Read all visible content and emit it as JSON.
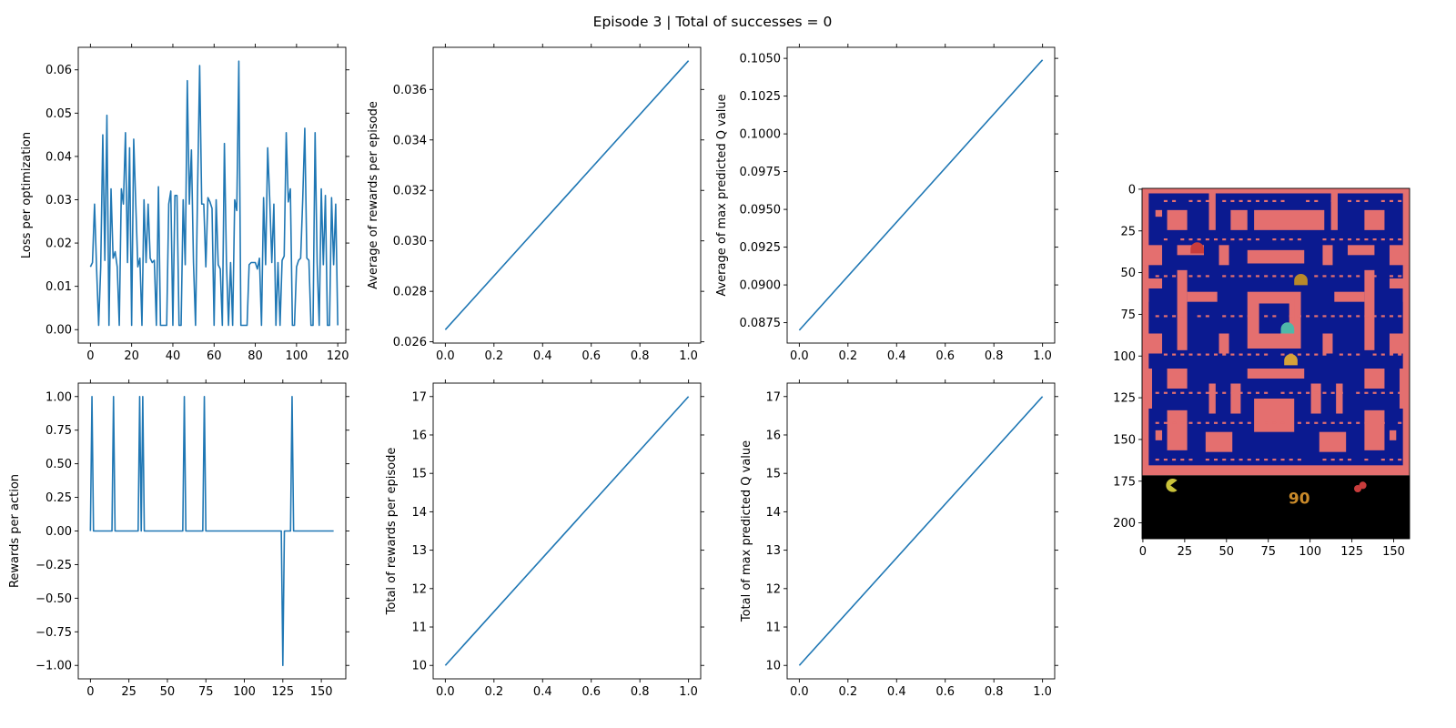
{
  "figure": {
    "suptitle": "Episode 3 | Total of successes = 0"
  },
  "colors": {
    "line": "#1f77b4",
    "maze_wall": "#e46f6f",
    "maze_floor": "#0b1a90",
    "pellet": "#e46f6f",
    "hud": "#000000",
    "pacman": "#c9c23a",
    "score": "#c98a2a"
  },
  "chart_data": [
    {
      "type": "line",
      "ylabel": "Loss per optimization",
      "xlim": [
        -5.9,
        123.9
      ],
      "ylim": [
        -0.0031,
        0.0652
      ],
      "xticks": [
        0,
        20,
        40,
        60,
        80,
        100,
        120
      ],
      "yticks": [
        0.0,
        0.01,
        0.02,
        0.03,
        0.04,
        0.05,
        0.06
      ],
      "ytick_labels": [
        "0.00",
        "0.01",
        "0.02",
        "0.03",
        "0.04",
        "0.05",
        "0.06"
      ],
      "series": [
        {
          "values": [
            0.0145,
            0.0155,
            0.029,
            0.014,
            0.001,
            0.0145,
            0.045,
            0.016,
            0.0495,
            0.001,
            0.0325,
            0.0165,
            0.018,
            0.0145,
            0.001,
            0.0325,
            0.029,
            0.0455,
            0.0155,
            0.042,
            0.001,
            0.044,
            0.029,
            0.0145,
            0.0165,
            0.001,
            0.03,
            0.0155,
            0.029,
            0.0165,
            0.0155,
            0.016,
            0.001,
            0.033,
            0.001,
            0.001,
            0.001,
            0.001,
            0.029,
            0.032,
            0.001,
            0.031,
            0.031,
            0.001,
            0.001,
            0.03,
            0.015,
            0.0575,
            0.029,
            0.0415,
            0.0155,
            0.001,
            0.0325,
            0.061,
            0.029,
            0.029,
            0.0145,
            0.0305,
            0.0295,
            0.028,
            0.001,
            0.03,
            0.015,
            0.014,
            0.001,
            0.043,
            0.0155,
            0.001,
            0.0155,
            0.001,
            0.03,
            0.0275,
            0.062,
            0.001,
            0.001,
            0.001,
            0.001,
            0.015,
            0.0155,
            0.0155,
            0.0155,
            0.014,
            0.0165,
            0.001,
            0.0305,
            0.015,
            0.042,
            0.03,
            0.0155,
            0.029,
            0.001,
            0.0155,
            0.001,
            0.016,
            0.017,
            0.0455,
            0.0295,
            0.0325,
            0.001,
            0.001,
            0.0145,
            0.016,
            0.0165,
            0.03,
            0.0465,
            0.0165,
            0.016,
            0.001,
            0.001,
            0.0455,
            0.0155,
            0.001,
            0.0325,
            0.015,
            0.031,
            0.001,
            0.001,
            0.0305,
            0.015,
            0.029,
            0.001
          ]
        }
      ]
    },
    {
      "type": "line",
      "ylabel": "Average of rewards per episode",
      "xlim": [
        -0.05,
        1.05
      ],
      "ylim": [
        0.02595,
        0.03767
      ],
      "xticks": [
        0.0,
        0.2,
        0.4,
        0.6,
        0.8,
        1.0
      ],
      "xtick_labels": [
        "0.0",
        "0.2",
        "0.4",
        "0.6",
        "0.8",
        "1.0"
      ],
      "yticks": [
        0.026,
        0.028,
        0.03,
        0.032,
        0.034,
        0.036
      ],
      "ytick_labels": [
        "0.026",
        "0.028",
        "0.030",
        "0.032",
        "0.034",
        "0.036"
      ],
      "series": [
        {
          "x": [
            0,
            1
          ],
          "values": [
            0.02648,
            0.03714
          ]
        }
      ]
    },
    {
      "type": "line",
      "ylabel": "Average of max predicted Q value",
      "xlim": [
        -0.05,
        1.05
      ],
      "ylim": [
        0.08615,
        0.10573
      ],
      "xticks": [
        0.0,
        0.2,
        0.4,
        0.6,
        0.8,
        1.0
      ],
      "xtick_labels": [
        "0.0",
        "0.2",
        "0.4",
        "0.6",
        "0.8",
        "1.0"
      ],
      "yticks": [
        0.0875,
        0.09,
        0.0925,
        0.095,
        0.0975,
        0.1,
        0.1025,
        0.105
      ],
      "ytick_labels": [
        "0.0875",
        "0.0900",
        "0.0925",
        "0.0950",
        "0.0975",
        "0.1000",
        "0.1025",
        "0.1050"
      ],
      "series": [
        {
          "x": [
            0,
            1
          ],
          "values": [
            0.087,
            0.1049
          ]
        }
      ]
    },
    {
      "type": "line",
      "ylabel": "Rewards per action",
      "xlim": [
        -7.9,
        165.9
      ],
      "ylim": [
        -1.1,
        1.1
      ],
      "xticks": [
        0,
        25,
        50,
        75,
        100,
        125,
        150
      ],
      "yticks": [
        -1.0,
        -0.75,
        -0.5,
        -0.25,
        0.0,
        0.25,
        0.5,
        0.75,
        1.0
      ],
      "ytick_labels": [
        "−1.00",
        "−0.75",
        "−0.50",
        "−0.25",
        "0.00",
        "0.25",
        "0.50",
        "0.75",
        "1.00"
      ],
      "series": [
        {
          "x": [
            0,
            1,
            2,
            14,
            15,
            16,
            31,
            32,
            33,
            34,
            35,
            36,
            60,
            61,
            62,
            73,
            74,
            75,
            124,
            125,
            126,
            130,
            131,
            132,
            158
          ],
          "values": [
            0,
            1,
            0,
            0,
            1,
            0,
            0,
            1,
            0,
            1,
            0,
            0,
            0,
            1,
            0,
            0,
            1,
            0,
            0,
            -1,
            0,
            0,
            1,
            0,
            0
          ]
        }
      ]
    },
    {
      "type": "line",
      "ylabel": "Total of rewards per episode",
      "xlim": [
        -0.05,
        1.05
      ],
      "ylim": [
        9.65,
        17.35
      ],
      "xticks": [
        0.0,
        0.2,
        0.4,
        0.6,
        0.8,
        1.0
      ],
      "xtick_labels": [
        "0.0",
        "0.2",
        "0.4",
        "0.6",
        "0.8",
        "1.0"
      ],
      "yticks": [
        10,
        11,
        12,
        13,
        14,
        15,
        16,
        17
      ],
      "series": [
        {
          "x": [
            0,
            1
          ],
          "values": [
            10,
            17
          ]
        }
      ]
    },
    {
      "type": "line",
      "ylabel": "Total of max predicted Q value",
      "xlim": [
        -0.05,
        1.05
      ],
      "ylim": [
        9.65,
        17.35
      ],
      "xticks": [
        0.0,
        0.2,
        0.4,
        0.6,
        0.8,
        1.0
      ],
      "xtick_labels": [
        "0.0",
        "0.2",
        "0.4",
        "0.6",
        "0.8",
        "1.0"
      ],
      "yticks": [
        10,
        11,
        12,
        13,
        14,
        15,
        16,
        17
      ],
      "series": [
        {
          "x": [
            0,
            1
          ],
          "values": [
            10,
            17
          ]
        }
      ]
    }
  ],
  "image_panel": {
    "xticks": [
      0,
      25,
      50,
      75,
      100,
      125,
      150
    ],
    "yticks": [
      0,
      25,
      50,
      75,
      100,
      125,
      150,
      175,
      200
    ],
    "xlim": [
      -0.5,
      159.5
    ],
    "ylim": [
      -0.5,
      209.5
    ],
    "score": "90"
  }
}
